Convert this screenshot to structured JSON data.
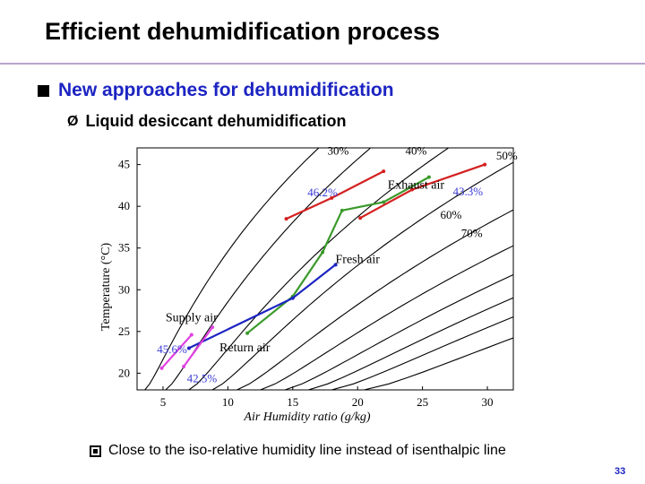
{
  "slide": {
    "title": "Efficient dehumidification process",
    "bullet": "New approaches for dehumidification",
    "sub_bullet": "Liquid desiccant dehumidification",
    "note": "Close to the iso-relative humidity line instead of isenthalpic line",
    "page_number": "33",
    "arrow_glyph": "Ø"
  },
  "chart_data": {
    "type": "line",
    "xlabel": "Air Humidity ratio (g/kg)",
    "ylabel": "Temperature (°C)",
    "xlim": [
      3,
      32
    ],
    "ylim": [
      18,
      47
    ],
    "xticks": [
      5,
      10,
      15,
      20,
      25,
      30
    ],
    "yticks": [
      20,
      25,
      30,
      35,
      40,
      45
    ],
    "rh_labels": [
      {
        "text": "30%",
        "x": 18.5,
        "y": 46.2
      },
      {
        "text": "40%",
        "x": 24.5,
        "y": 46.2
      },
      {
        "text": "50%",
        "x": 31.5,
        "y": 45.6
      },
      {
        "text": "60%",
        "x": 27.2,
        "y": 38.5
      },
      {
        "text": "70%",
        "x": 28.8,
        "y": 36.3
      }
    ],
    "point_labels": [
      {
        "text": "Exhaust air",
        "x": 24.5,
        "y": 42.1
      },
      {
        "text": "Fresh air",
        "x": 20.0,
        "y": 33.2
      },
      {
        "text": "Supply air",
        "x": 7.2,
        "y": 26.2
      },
      {
        "text": "Return air",
        "x": 11.3,
        "y": 22.6
      }
    ],
    "value_labels": [
      {
        "text": "46.2%",
        "x": 17.3,
        "y": 41.2,
        "color": "#3a3ad6"
      },
      {
        "text": "43.3%",
        "x": 28.5,
        "y": 41.3,
        "color": "#3a3ad6"
      },
      {
        "text": "45.6%",
        "x": 5.7,
        "y": 22.4,
        "color": "#3a3ad6"
      },
      {
        "text": "42.5%",
        "x": 8.0,
        "y": 18.9,
        "color": "#3a3ad6"
      }
    ],
    "series": [
      {
        "points": [
          [
            11.5,
            24.8
          ],
          [
            15.0,
            29.2
          ],
          [
            17.3,
            34.5
          ],
          [
            18.8,
            39.5
          ],
          [
            22.0,
            40.5
          ],
          [
            25.5,
            43.5
          ]
        ],
        "color": "#3a9a2a"
      },
      {
        "points": [
          [
            7.0,
            23.0
          ],
          [
            15.0,
            29.0
          ],
          [
            18.3,
            33.0
          ]
        ],
        "color": "#1c24c2"
      },
      {
        "points": [
          [
            14.5,
            38.5
          ],
          [
            18.0,
            41.0
          ],
          [
            22.0,
            44.2
          ]
        ],
        "color": "#d42020"
      },
      {
        "points": [
          [
            20.2,
            38.6
          ],
          [
            24.2,
            42.0
          ],
          [
            29.8,
            45.0
          ]
        ],
        "color": "#d42020"
      },
      {
        "points": [
          [
            4.9,
            20.6
          ],
          [
            7.2,
            24.6
          ]
        ],
        "color": "#e040e0"
      },
      {
        "points": [
          [
            6.6,
            20.8
          ],
          [
            8.8,
            25.5
          ]
        ],
        "color": "#e040e0"
      }
    ],
    "grid": false,
    "background": "#ffffff",
    "line_color": "#000000"
  }
}
